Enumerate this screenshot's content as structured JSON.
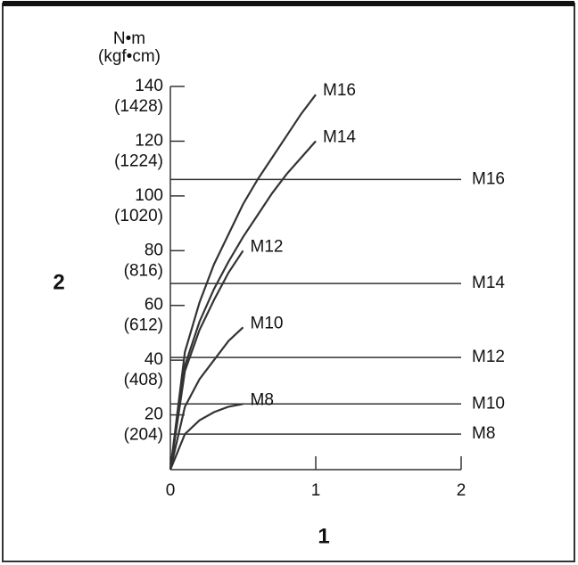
{
  "chart_data": {
    "type": "line",
    "unit_label": "N•m",
    "unit_sublabel": "(kgf•cm)",
    "x_axis_label": "1",
    "y_axis_label": "2",
    "xlim": [
      0,
      2
    ],
    "xticks": [
      0,
      1,
      2
    ],
    "ylim": [
      0,
      140
    ],
    "yticks": [
      20,
      40,
      60,
      80,
      100,
      120,
      140
    ],
    "ytick_sublabels": [
      "(204)",
      "(408)",
      "(612)",
      "(816)",
      "(1020)",
      "(1224)",
      "(1428)"
    ],
    "color": "#333333",
    "series": [
      {
        "name": "M16",
        "x": [
          0,
          0.1,
          0.2,
          0.3,
          0.4,
          0.5,
          0.6,
          0.7,
          0.8,
          0.9,
          1.0
        ],
        "values": [
          0,
          43,
          61,
          75,
          86,
          97,
          106,
          114,
          122,
          130,
          137
        ]
      },
      {
        "name": "M14",
        "x": [
          0,
          0.1,
          0.2,
          0.3,
          0.4,
          0.5,
          0.6,
          0.7,
          0.8,
          0.9,
          1.0
        ],
        "values": [
          0,
          38,
          54,
          66,
          76,
          85,
          93,
          101,
          108,
          114,
          120
        ]
      },
      {
        "name": "M12",
        "x": [
          0,
          0.1,
          0.2,
          0.3,
          0.4,
          0.5
        ],
        "values": [
          0,
          36,
          51,
          62,
          72,
          80
        ]
      },
      {
        "name": "M10",
        "x": [
          0,
          0.1,
          0.2,
          0.3,
          0.4,
          0.5
        ],
        "values": [
          0,
          23,
          33,
          40,
          47,
          52
        ]
      },
      {
        "name": "M8",
        "x": [
          0,
          0.1,
          0.2,
          0.3,
          0.4,
          0.5
        ],
        "values": [
          0,
          13,
          18,
          21,
          23,
          24
        ]
      }
    ],
    "limits": [
      {
        "name": "M16",
        "value": 106
      },
      {
        "name": "M14",
        "value": 68
      },
      {
        "name": "M12",
        "value": 41
      },
      {
        "name": "M10",
        "value": 24
      },
      {
        "name": "M8",
        "value": 13
      }
    ]
  }
}
